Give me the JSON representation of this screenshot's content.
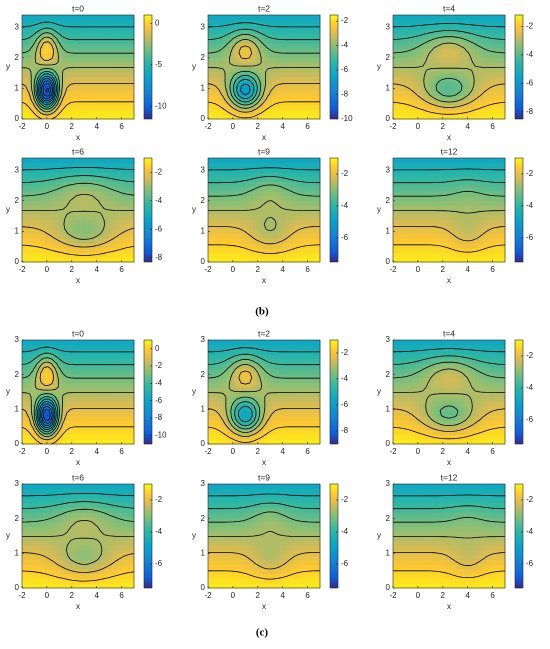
{
  "captions": [
    "(b)",
    "(c)"
  ],
  "chart_data": [
    {
      "type": "contour",
      "title": "t=0",
      "xlabel": "x",
      "ylabel": "y",
      "xlim": [
        -2,
        7
      ],
      "ylim": [
        0,
        3.4
      ],
      "xticks": [
        -2,
        0,
        2,
        4,
        6
      ],
      "yticks": [
        0,
        1,
        2,
        3
      ],
      "clim": [
        -11.5,
        1
      ],
      "cticks": [
        0,
        -5,
        -10
      ]
    },
    {
      "type": "contour",
      "title": "t=2",
      "xlabel": "x",
      "ylabel": "y",
      "xlim": [
        -2,
        7
      ],
      "ylim": [
        0,
        3.4
      ],
      "xticks": [
        -2,
        0,
        2,
        4,
        6
      ],
      "yticks": [
        0,
        1,
        2,
        3
      ],
      "clim": [
        -10,
        -1.5
      ],
      "cticks": [
        -2,
        -4,
        -6,
        -8,
        -10
      ]
    },
    {
      "type": "contour",
      "title": "t=4",
      "xlabel": "x",
      "ylabel": "y",
      "xlim": [
        -2,
        7
      ],
      "ylim": [
        0,
        3.4
      ],
      "xticks": [
        -2,
        0,
        2,
        4,
        6
      ],
      "yticks": [
        0,
        1,
        2,
        3
      ],
      "clim": [
        -8.5,
        -1.2
      ],
      "cticks": [
        -2,
        -4,
        -6,
        -8
      ]
    },
    {
      "type": "contour",
      "title": "t=6",
      "xlabel": "x",
      "ylabel": "y",
      "xlim": [
        -2,
        7
      ],
      "ylim": [
        0,
        3.4
      ],
      "xticks": [
        -2,
        0,
        2,
        4,
        6
      ],
      "yticks": [
        0,
        1,
        2,
        3
      ],
      "clim": [
        -8.3,
        -1
      ],
      "cticks": [
        -2,
        -4,
        -6,
        -8
      ]
    },
    {
      "type": "contour",
      "title": "t=9",
      "xlabel": "x",
      "ylabel": "y",
      "xlim": [
        -2,
        7
      ],
      "ylim": [
        0,
        3.4
      ],
      "xticks": [
        -2,
        0,
        2,
        4,
        6
      ],
      "yticks": [
        0,
        1,
        2,
        3
      ],
      "clim": [
        -7.5,
        -1
      ],
      "cticks": [
        -2,
        -4,
        -6
      ]
    },
    {
      "type": "contour",
      "title": "t=12",
      "xlabel": "x",
      "ylabel": "y",
      "xlim": [
        -2,
        7
      ],
      "ylim": [
        0,
        3.4
      ],
      "xticks": [
        -2,
        0,
        2,
        4,
        6
      ],
      "yticks": [
        0,
        1,
        2,
        3
      ],
      "clim": [
        -7.5,
        -1
      ],
      "cticks": [
        -2,
        -4,
        -6
      ]
    },
    {
      "type": "contour",
      "title": "t=0",
      "xlabel": "x",
      "ylabel": "y",
      "xlim": [
        -2,
        7
      ],
      "ylim": [
        0,
        3
      ],
      "xticks": [
        -2,
        0,
        2,
        4,
        6
      ],
      "yticks": [
        0,
        1,
        2,
        3
      ],
      "clim": [
        -11,
        1
      ],
      "cticks": [
        0,
        -2,
        -4,
        -6,
        -8,
        -10
      ]
    },
    {
      "type": "contour",
      "title": "t=2",
      "xlabel": "x",
      "ylabel": "y",
      "xlim": [
        -2,
        7
      ],
      "ylim": [
        0,
        3
      ],
      "xticks": [
        -2,
        0,
        2,
        4,
        6
      ],
      "yticks": [
        0,
        1,
        2,
        3
      ],
      "clim": [
        -9,
        -1
      ],
      "cticks": [
        -2,
        -4,
        -6,
        -8
      ]
    },
    {
      "type": "contour",
      "title": "t=4",
      "xlabel": "x",
      "ylabel": "y",
      "xlim": [
        -2,
        7
      ],
      "ylim": [
        0,
        3
      ],
      "xticks": [
        -2,
        0,
        2,
        4,
        6
      ],
      "yticks": [
        0,
        1,
        2,
        3
      ],
      "clim": [
        -7.5,
        -1
      ],
      "cticks": [
        -2,
        -4,
        -6
      ]
    },
    {
      "type": "contour",
      "title": "t=6",
      "xlabel": "x",
      "ylabel": "y",
      "xlim": [
        -2,
        7
      ],
      "ylim": [
        0,
        3
      ],
      "xticks": [
        -2,
        0,
        2,
        4,
        6
      ],
      "yticks": [
        0,
        1,
        2,
        3
      ],
      "clim": [
        -7.5,
        -1
      ],
      "cticks": [
        -2,
        -4,
        -6
      ]
    },
    {
      "type": "contour",
      "title": "t=9",
      "xlabel": "x",
      "ylabel": "y",
      "xlim": [
        -2,
        7
      ],
      "ylim": [
        0,
        3
      ],
      "xticks": [
        -2,
        0,
        2,
        4,
        6
      ],
      "yticks": [
        0,
        1,
        2,
        3
      ],
      "clim": [
        -7.5,
        -1
      ],
      "cticks": [
        -2,
        -4,
        -6
      ]
    },
    {
      "type": "contour",
      "title": "t=12",
      "xlabel": "x",
      "ylabel": "y",
      "xlim": [
        -2,
        7
      ],
      "ylim": [
        0,
        3
      ],
      "xticks": [
        -2,
        0,
        2,
        4,
        6
      ],
      "yticks": [
        0,
        1,
        2,
        3
      ],
      "clim": [
        -7.5,
        -1
      ],
      "cticks": [
        -2,
        -4,
        -6
      ]
    }
  ]
}
